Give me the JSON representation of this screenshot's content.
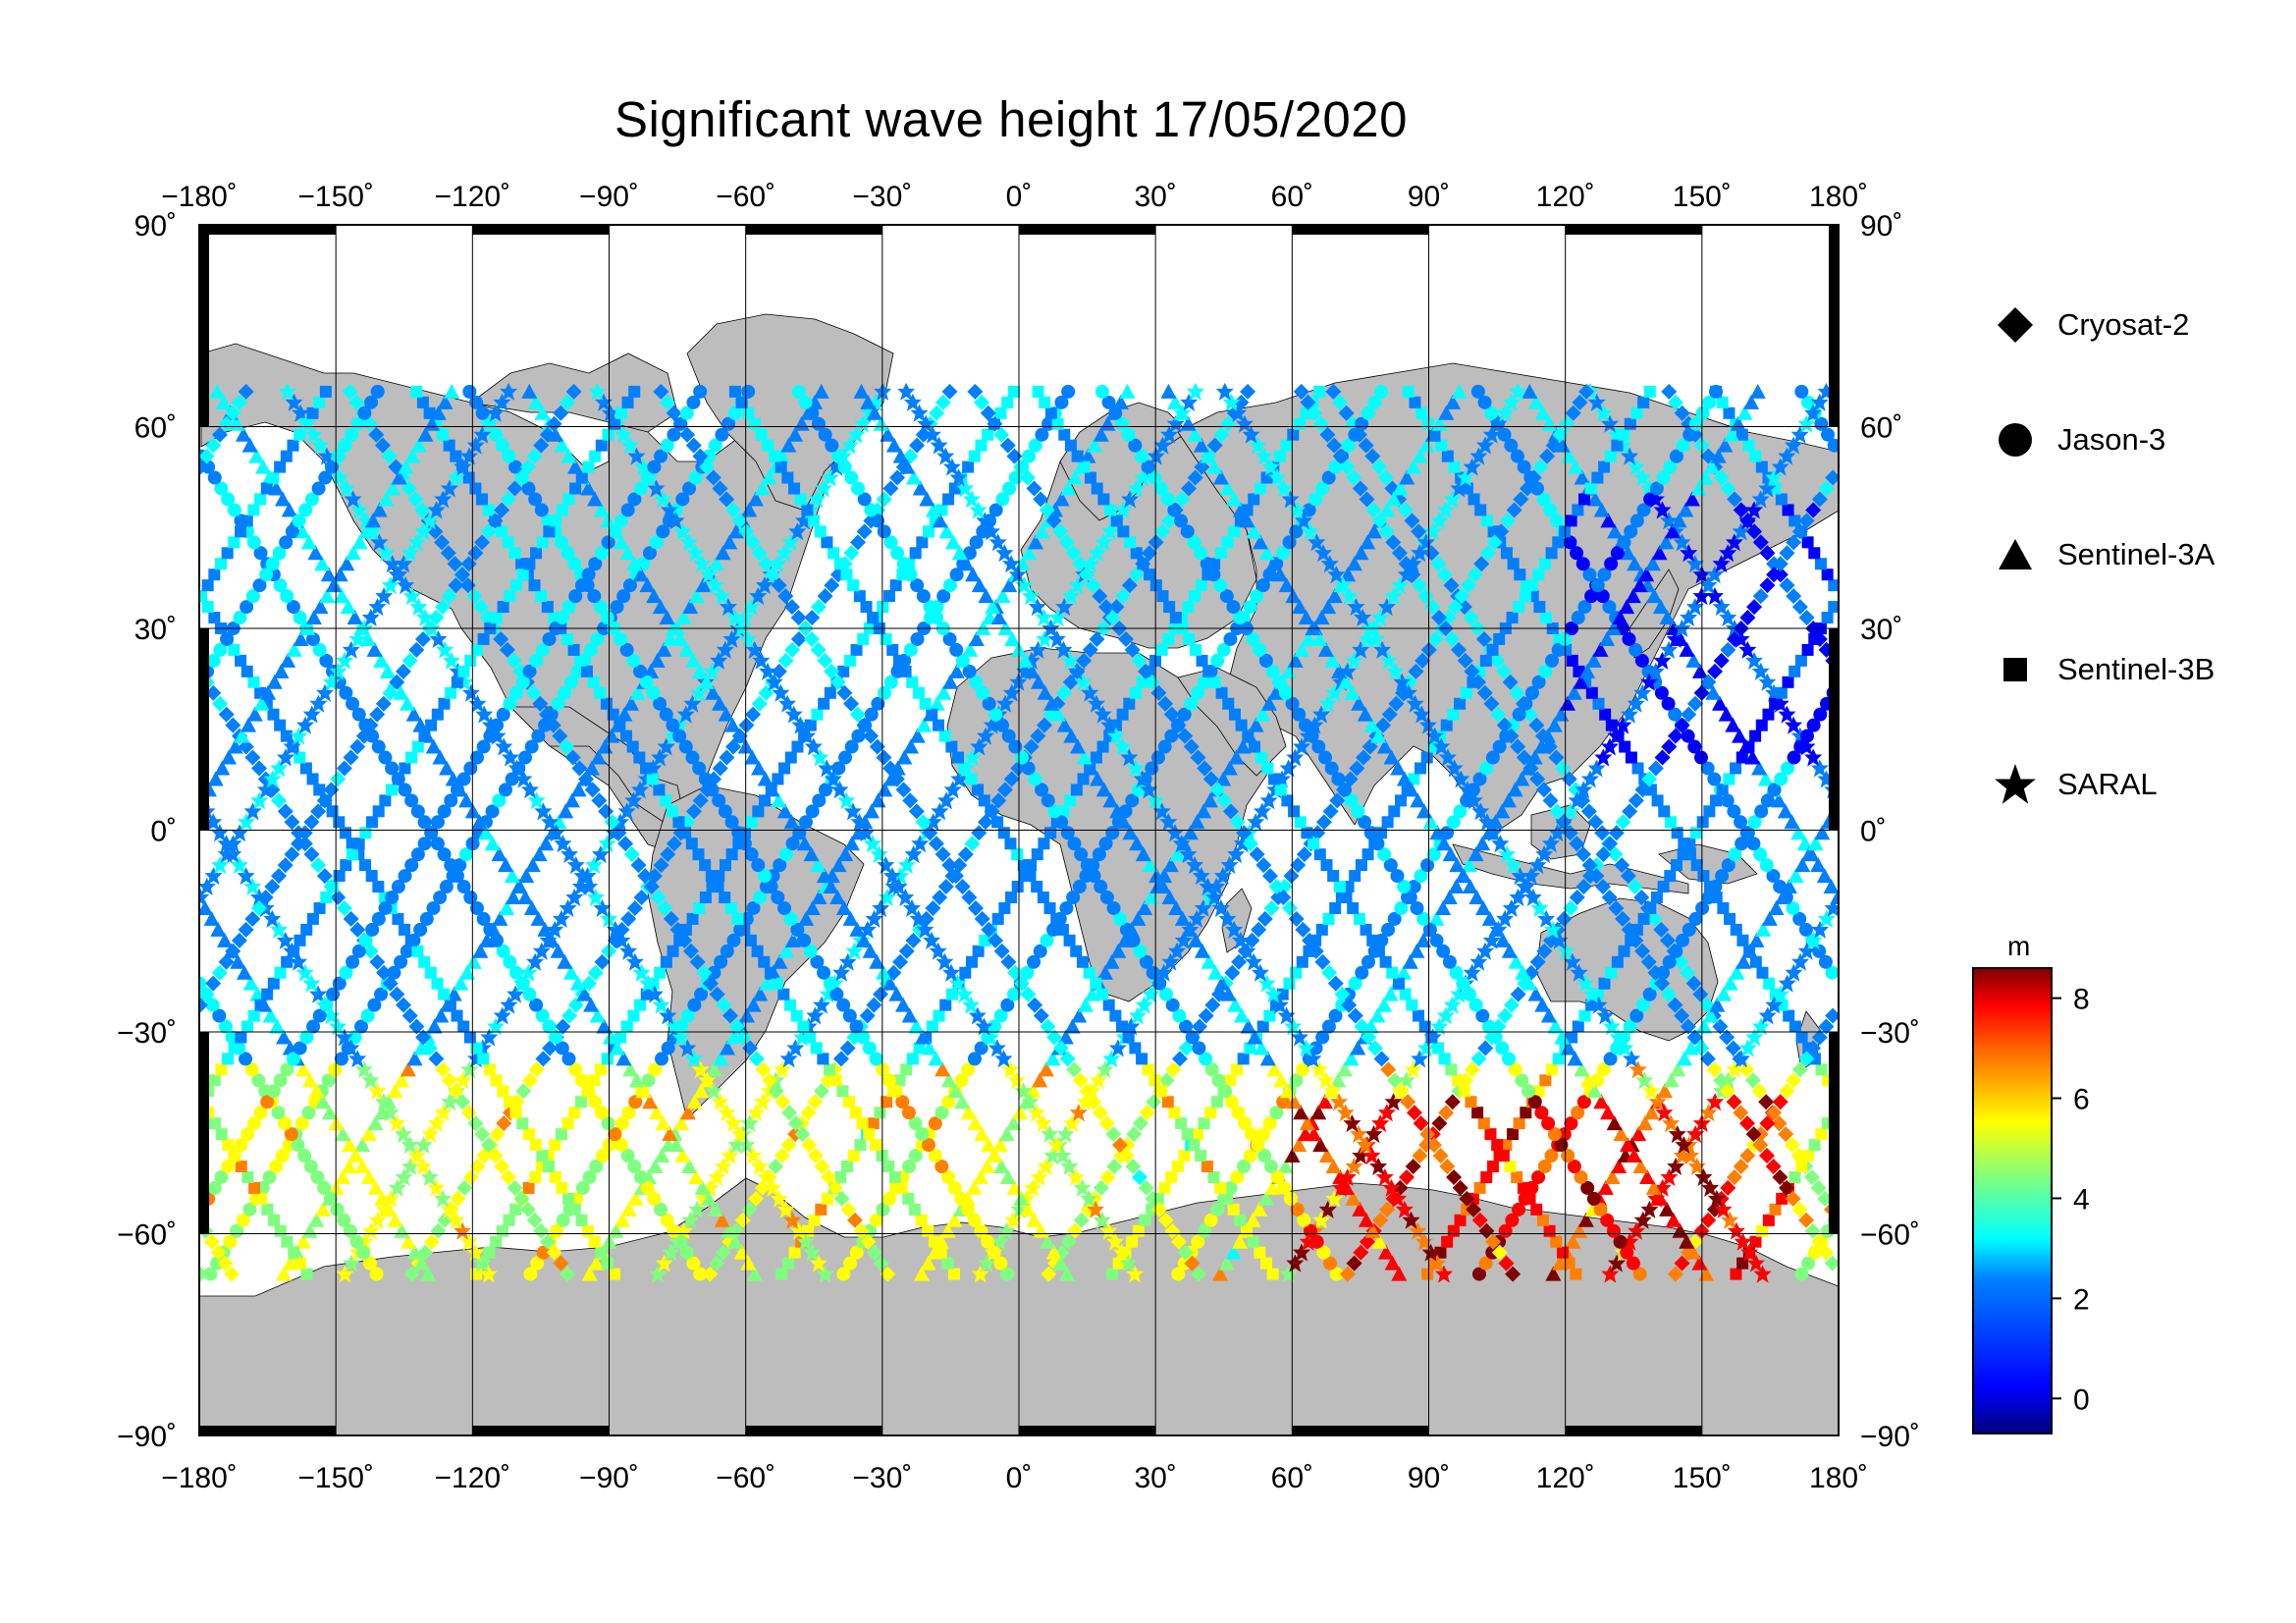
{
  "title": "Significant wave height 17/05/2020",
  "axes": {
    "lon_ticks": [
      "−180˚",
      "−150˚",
      "−120˚",
      "−90˚",
      "−60˚",
      "−30˚",
      "0˚",
      "30˚",
      "60˚",
      "90˚",
      "120˚",
      "150˚",
      "180˚"
    ],
    "lat_ticks_left": [
      "90˚",
      "60˚",
      "30˚",
      "0˚",
      "−30˚",
      "−60˚",
      "−90˚"
    ],
    "lat_ticks_right": [
      "90˚",
      "60˚",
      "30˚",
      "0˚",
      "−30˚",
      "−60˚",
      "−90˚"
    ],
    "lon_range": [
      -180,
      180
    ],
    "lat_range": [
      -90,
      90
    ],
    "grid": true
  },
  "legend": {
    "placement": "right",
    "items": [
      {
        "label": "Cryosat-2",
        "icon": "diamond-icon"
      },
      {
        "label": "Jason-3",
        "icon": "circle-icon"
      },
      {
        "label": "Sentinel-3A",
        "icon": "triangle-icon"
      },
      {
        "label": "Sentinel-3B",
        "icon": "square-icon"
      },
      {
        "label": "SARAL",
        "icon": "star-icon"
      }
    ]
  },
  "colorbar": {
    "unit": "m",
    "ticks": [
      "0",
      "2",
      "4",
      "6",
      "8"
    ],
    "range": [
      -0.7,
      8.6
    ],
    "colors": [
      "#00007f",
      "#0000ff",
      "#007fff",
      "#00ffff",
      "#7fff7f",
      "#ffff00",
      "#ff7f00",
      "#ff0000",
      "#7f0000"
    ]
  },
  "colors": {
    "land": "#bdbdbd",
    "ocean": "#ffffff",
    "frame": "#000000"
  }
}
